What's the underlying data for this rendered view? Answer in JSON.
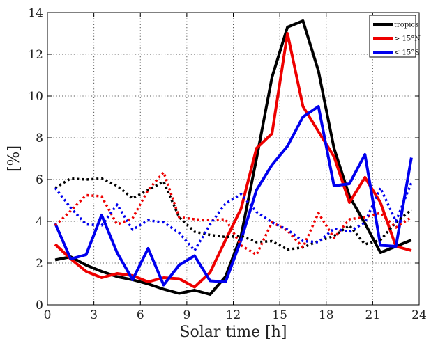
{
  "chart_data": {
    "type": "line",
    "xlabel": "Solar time [h]",
    "ylabel": "[%]",
    "xlim": [
      0,
      24
    ],
    "ylim": [
      0,
      14
    ],
    "xticks": [
      0,
      3,
      6,
      9,
      12,
      15,
      18,
      21,
      24
    ],
    "yticks": [
      0,
      2,
      4,
      6,
      8,
      10,
      12,
      14
    ],
    "grid": true,
    "legend_position": "top-right",
    "x": [
      0.5,
      1.5,
      2.5,
      3.5,
      4.5,
      5.5,
      6.5,
      7.5,
      8.5,
      9.5,
      10.5,
      11.5,
      12.5,
      13.5,
      14.5,
      15.5,
      16.5,
      17.5,
      18.5,
      19.5,
      20.5,
      21.5,
      22.5,
      23.5
    ],
    "series": [
      {
        "name": "tropics",
        "color": "#000000",
        "style": "solid",
        "values": [
          2.15,
          2.3,
          1.9,
          1.6,
          1.35,
          1.2,
          1.0,
          0.75,
          0.55,
          0.7,
          0.5,
          1.35,
          3.3,
          7.0,
          10.9,
          13.3,
          13.6,
          11.2,
          7.5,
          5.2,
          3.9,
          2.5,
          2.8,
          3.1
        ]
      },
      {
        "name": "> 15°N",
        "color": "#ee0000",
        "style": "solid",
        "values": [
          2.9,
          2.2,
          1.6,
          1.3,
          1.5,
          1.4,
          1.1,
          1.3,
          1.25,
          0.85,
          1.55,
          3.1,
          4.6,
          7.5,
          8.2,
          13.0,
          9.5,
          8.3,
          7.1,
          4.9,
          6.1,
          4.9,
          2.8,
          2.6
        ]
      },
      {
        "name": "< 15°S",
        "color": "#0000ee",
        "style": "solid",
        "values": [
          3.9,
          2.2,
          2.4,
          4.3,
          2.5,
          1.2,
          2.7,
          0.95,
          1.9,
          2.35,
          1.15,
          1.1,
          3.1,
          5.5,
          6.7,
          7.6,
          9.0,
          9.5,
          5.7,
          5.8,
          7.2,
          2.85,
          2.8,
          7.05
        ]
      },
      {
        "color": "#000000",
        "style": "dotted",
        "values": [
          5.6,
          6.05,
          6.0,
          6.05,
          5.7,
          5.1,
          5.5,
          5.9,
          4.2,
          3.5,
          3.35,
          3.25,
          3.3,
          3.0,
          3.05,
          2.65,
          2.75,
          3.05,
          3.3,
          3.8,
          2.9,
          3.1,
          3.95,
          4.55
        ]
      },
      {
        "color": "#ee0000",
        "style": "dotted",
        "values": [
          3.8,
          4.5,
          5.25,
          5.2,
          3.85,
          4.15,
          5.5,
          6.35,
          4.2,
          4.1,
          4.05,
          4.1,
          2.85,
          2.4,
          3.95,
          3.55,
          2.75,
          4.4,
          3.2,
          4.1,
          4.2,
          4.4,
          3.7,
          4.2
        ]
      },
      {
        "color": "#0000ee",
        "style": "dotted",
        "values": [
          5.6,
          4.65,
          3.85,
          3.8,
          4.8,
          3.6,
          4.05,
          3.95,
          3.45,
          2.6,
          3.85,
          4.85,
          5.3,
          4.45,
          3.95,
          3.6,
          3.05,
          3.0,
          3.65,
          3.5,
          3.95,
          5.6,
          4.0,
          5.85
        ]
      }
    ]
  }
}
